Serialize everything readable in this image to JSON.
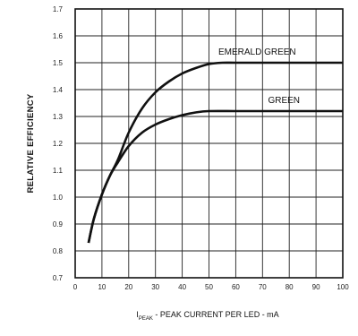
{
  "chart_data": {
    "type": "line",
    "title": "",
    "xlabel_sub": "PEAK",
    "xlabel_prefix": "I",
    "xlabel_text": " - PEAK CURRENT PER LED - mA",
    "ylabel": "RELATIVE EFFICIENCY",
    "xlim": [
      0,
      100
    ],
    "ylim": [
      0.7,
      1.7
    ],
    "xticks": [
      0,
      10,
      20,
      30,
      40,
      50,
      60,
      70,
      80,
      90,
      100
    ],
    "yticks": [
      0.7,
      0.8,
      0.9,
      1.0,
      1.1,
      1.2,
      1.3,
      1.4,
      1.5,
      1.6,
      1.7
    ],
    "xtick_labels": [
      "0",
      "10",
      "20",
      "30",
      "40",
      "50",
      "60",
      "70",
      "80",
      "90",
      "100"
    ],
    "ytick_labels": [
      "0.7",
      "0.8",
      "0.9",
      "1.0",
      "1.1",
      "1.2",
      "1.3",
      "1.4",
      "1.5",
      "1.6",
      "1.7"
    ],
    "grid": true,
    "series": [
      {
        "name": "EMERALD GREEN",
        "x": [
          5,
          7,
          10,
          13,
          16,
          20,
          25,
          30,
          35,
          40,
          45,
          50,
          55,
          60,
          70,
          80,
          90,
          100
        ],
        "y": [
          0.83,
          0.92,
          1.01,
          1.08,
          1.14,
          1.24,
          1.33,
          1.39,
          1.43,
          1.46,
          1.48,
          1.495,
          1.5,
          1.5,
          1.5,
          1.5,
          1.5,
          1.5
        ]
      },
      {
        "name": "GREEN",
        "x": [
          5,
          7,
          10,
          13,
          16,
          20,
          25,
          30,
          35,
          40,
          45,
          50,
          60,
          70,
          80,
          90,
          100
        ],
        "y": [
          0.83,
          0.92,
          1.01,
          1.08,
          1.13,
          1.19,
          1.24,
          1.27,
          1.29,
          1.305,
          1.315,
          1.32,
          1.32,
          1.32,
          1.32,
          1.32,
          1.32
        ]
      }
    ]
  }
}
